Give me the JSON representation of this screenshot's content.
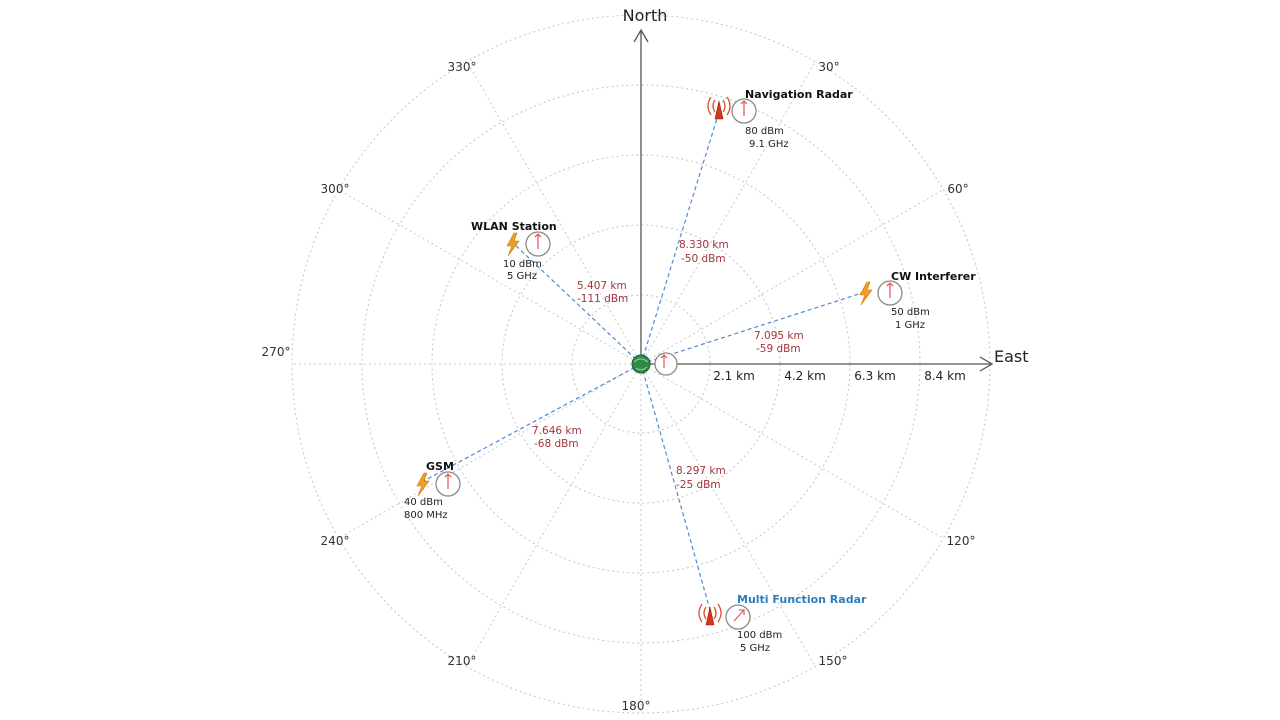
{
  "axes": {
    "north_label": "North",
    "east_label": "East"
  },
  "degree_labels": {
    "d30": "30°",
    "d60": "60°",
    "d120": "120°",
    "d150": "150°",
    "d180": "180°",
    "d210": "210°",
    "d240": "240°",
    "d270": "270°",
    "d300": "300°",
    "d330": "330°"
  },
  "range_labels": [
    "2.1 km",
    "4.2 km",
    "6.3 km",
    "8.4 km"
  ],
  "emitters": {
    "navigation_radar": {
      "name": "Navigation Radar",
      "power": "80 dBm",
      "frequency": "9.1 GHz",
      "distance": "8.330 km",
      "level": "-50 dBm"
    },
    "wlan_station": {
      "name": "WLAN Station",
      "power": "10 dBm",
      "frequency": "5 GHz",
      "distance": "5.407 km",
      "level": "-111 dBm"
    },
    "cw_interferer": {
      "name": "CW Interferer",
      "power": "50 dBm",
      "frequency": "1 GHz",
      "distance": "7.095 km",
      "level": "-59 dBm"
    },
    "gsm": {
      "name": "GSM",
      "power": "40 dBm",
      "frequency": "800 MHz",
      "distance": "7.646 km",
      "level": "-68 dBm"
    },
    "multi_function_radar": {
      "name": "Multi Function Radar",
      "power": "100 dBm",
      "frequency": "5 GHz",
      "distance": "8.297 km",
      "level": "-25 dBm"
    }
  },
  "colors": {
    "line_of_sight": "#4a8ad4",
    "link_values": "#a3343a",
    "multi_function_radar_label": "#2a7fc0"
  }
}
